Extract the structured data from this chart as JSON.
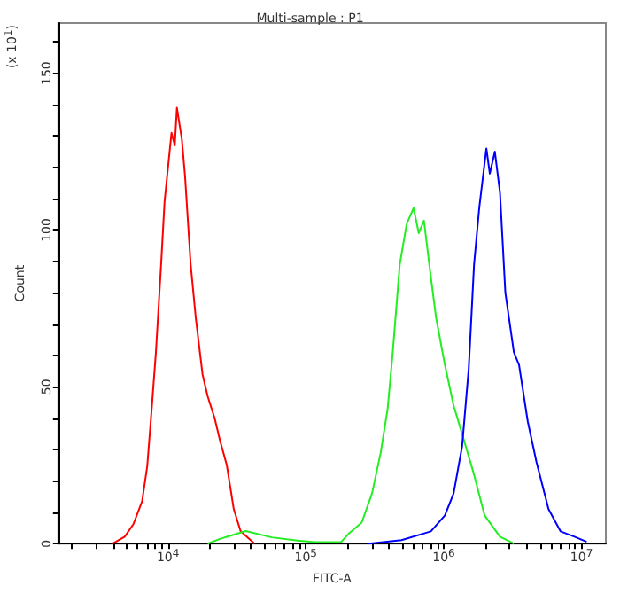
{
  "chart_data": {
    "type": "line",
    "title": "Multi-sample : P1",
    "xlabel": "FITC-A",
    "ylabel": "Count",
    "annotations": [
      "(x 10$^{1}$)"
    ],
    "log": "x",
    "grid": false,
    "marker": "none",
    "line_style": "solid",
    "xlim": [
      1600,
      15000000
    ],
    "ylim": [
      0,
      166
    ],
    "xticks": [
      {
        "value": 2000,
        "label": null
      },
      {
        "value": 3000,
        "label": null
      },
      {
        "value": 4000,
        "label": null
      },
      {
        "value": 5000,
        "label": null
      },
      {
        "value": 6000,
        "label": null
      },
      {
        "value": 7000,
        "label": null
      },
      {
        "value": 8000,
        "label": null
      },
      {
        "value": 9000,
        "label": null
      },
      {
        "value": 10000,
        "label": "10$^{4}$"
      },
      {
        "value": 20000,
        "label": null
      },
      {
        "value": 30000,
        "label": null
      },
      {
        "value": 40000,
        "label": null
      },
      {
        "value": 50000,
        "label": null
      },
      {
        "value": 60000,
        "label": null
      },
      {
        "value": 70000,
        "label": null
      },
      {
        "value": 80000,
        "label": null
      },
      {
        "value": 90000,
        "label": null
      },
      {
        "value": 100000,
        "label": "10$^{5}$"
      },
      {
        "value": 200000,
        "label": null
      },
      {
        "value": 300000,
        "label": null
      },
      {
        "value": 400000,
        "label": null
      },
      {
        "value": 500000,
        "label": null
      },
      {
        "value": 600000,
        "label": null
      },
      {
        "value": 700000,
        "label": null
      },
      {
        "value": 800000,
        "label": null
      },
      {
        "value": 900000,
        "label": null
      },
      {
        "value": 1000000,
        "label": "10$^{6}$"
      },
      {
        "value": 2000000,
        "label": null
      },
      {
        "value": 3000000,
        "label": null
      },
      {
        "value": 4000000,
        "label": null
      },
      {
        "value": 5000000,
        "label": null
      },
      {
        "value": 6000000,
        "label": null
      },
      {
        "value": 7000000,
        "label": null
      },
      {
        "value": 8000000,
        "label": null
      },
      {
        "value": 9000000,
        "label": null
      },
      {
        "value": 10000000,
        "label": "10$^{7}$"
      }
    ],
    "yticks": [
      0,
      {
        "value": 10,
        "label": null
      },
      {
        "value": 20,
        "label": null
      },
      {
        "value": 30,
        "label": null
      },
      {
        "value": 40,
        "label": null
      },
      50,
      {
        "value": 60,
        "label": null
      },
      {
        "value": 70,
        "label": null
      },
      {
        "value": 80,
        "label": null
      },
      {
        "value": 90,
        "label": null
      },
      100,
      {
        "value": 110,
        "label": null
      },
      {
        "value": 120,
        "label": null
      },
      {
        "value": 130,
        "label": null
      },
      {
        "value": 140,
        "label": null
      },
      150,
      {
        "value": 160,
        "label": null
      }
    ],
    "series": [
      {
        "color": "#ff0000",
        "x": [
          3970,
          4850,
          5610,
          6490,
          7070,
          7490,
          8170,
          8910,
          9440,
          10600,
          11200,
          11600,
          12600,
          13300,
          14600,
          15900,
          17800,
          19400,
          21800,
          23800,
          26700,
          30000,
          33600,
          42400
        ],
        "values": [
          0,
          2.2,
          6.2,
          13.5,
          24.7,
          38.8,
          61,
          89,
          109,
          131,
          127,
          139,
          129,
          117,
          89,
          72,
          54,
          47,
          40,
          33,
          25,
          11,
          4,
          0
        ]
      },
      {
        "color": "#22ee22",
        "x": [
          19400,
          23800,
          36700,
          56600,
          87300,
          116000,
          180000,
          207000,
          254000,
          302000,
          349000,
          392000,
          427000,
          480000,
          539000,
          605000,
          659000,
          719000,
          807000,
          881000,
          1020000,
          1180000,
          1360000,
          1660000,
          1980000,
          2560000,
          3230000
        ],
        "values": [
          0,
          1.5,
          4,
          2,
          1,
          0.5,
          0.5,
          3.4,
          6.7,
          16,
          29,
          43,
          61,
          89,
          102,
          107,
          99,
          103,
          85,
          72,
          57,
          44,
          35,
          22,
          9,
          2.2,
          0
        ]
      },
      {
        "color": "#0000ff",
        "x": [
          285000,
          494000,
          807000,
          1020000,
          1180000,
          1360000,
          1520000,
          1660000,
          1810000,
          2040000,
          2160000,
          2350000,
          2560000,
          2800000,
          3230000,
          3520000,
          4070000,
          4710000,
          5760000,
          7050000,
          8880000,
          10900000
        ],
        "values": [
          0,
          1.1,
          3.9,
          9,
          16,
          31,
          56,
          89,
          107,
          126,
          118,
          125,
          112,
          80,
          61,
          57,
          39,
          26,
          11,
          3.9,
          2.2,
          0.6
        ]
      }
    ]
  }
}
